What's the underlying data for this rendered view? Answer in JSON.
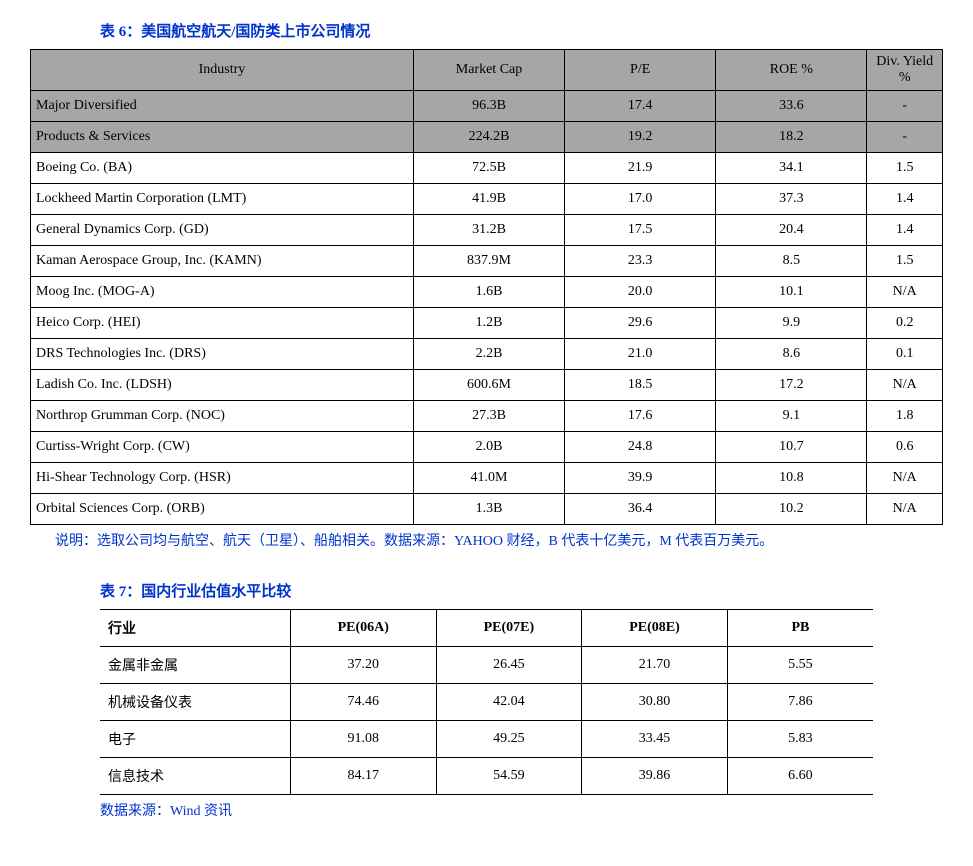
{
  "table6": {
    "title": "表 6：美国航空航天/国防类上市公司情况",
    "headers": [
      "Industry",
      "Market Cap",
      "P/E",
      "ROE %",
      "Div. Yield %"
    ],
    "rows": [
      {
        "cells": [
          "Major Diversified",
          "96.3B",
          "17.4",
          "33.6",
          "-"
        ],
        "gray": true
      },
      {
        "cells": [
          "Products & Services",
          "224.2B",
          "19.2",
          "18.2",
          "-"
        ],
        "gray": true
      },
      {
        "cells": [
          "Boeing Co. (BA)",
          "72.5B",
          "21.9",
          "34.1",
          "1.5"
        ],
        "gray": false
      },
      {
        "cells": [
          "Lockheed Martin Corporation (LMT)",
          "41.9B",
          "17.0",
          "37.3",
          "1.4"
        ],
        "gray": false
      },
      {
        "cells": [
          "General Dynamics Corp. (GD)",
          "31.2B",
          "17.5",
          "20.4",
          "1.4"
        ],
        "gray": false
      },
      {
        "cells": [
          "Kaman Aerospace Group, Inc. (KAMN)",
          "837.9M",
          "23.3",
          "8.5",
          "1.5"
        ],
        "gray": false
      },
      {
        "cells": [
          "Moog Inc. (MOG-A)",
          "1.6B",
          "20.0",
          "10.1",
          "N/A"
        ],
        "gray": false
      },
      {
        "cells": [
          "Heico Corp. (HEI)",
          "1.2B",
          "29.6",
          "9.9",
          "0.2"
        ],
        "gray": false
      },
      {
        "cells": [
          "DRS Technologies Inc. (DRS)",
          "2.2B",
          "21.0",
          "8.6",
          "0.1"
        ],
        "gray": false
      },
      {
        "cells": [
          "Ladish Co. Inc. (LDSH)",
          "600.6M",
          "18.5",
          "17.2",
          "N/A"
        ],
        "gray": false
      },
      {
        "cells": [
          "Northrop Grumman Corp. (NOC)",
          "27.3B",
          "17.6",
          "9.1",
          "1.8"
        ],
        "gray": false
      },
      {
        "cells": [
          "Curtiss-Wright Corp. (CW)",
          "2.0B",
          "24.8",
          "10.7",
          "0.6"
        ],
        "gray": false
      },
      {
        "cells": [
          "Hi-Shear Technology Corp. (HSR)",
          "41.0M",
          "39.9",
          "10.8",
          "N/A"
        ],
        "gray": false
      },
      {
        "cells": [
          "Orbital Sciences Corp. (ORB)",
          "1.3B",
          "36.4",
          "10.2",
          "N/A"
        ],
        "gray": false
      }
    ],
    "note": "说明：选取公司均与航空、航天（卫星）、船舶相关。数据来源：YAHOO 财经，B 代表十亿美元，M 代表百万美元。"
  },
  "table7": {
    "title": "表 7：国内行业估值水平比较",
    "headers": [
      "行业",
      "PE(06A)",
      "PE(07E)",
      "PE(08E)",
      "PB"
    ],
    "rows": [
      [
        "金属非金属",
        "37.20",
        "26.45",
        "21.70",
        "5.55"
      ],
      [
        "机械设备仪表",
        "74.46",
        "42.04",
        "30.80",
        "7.86"
      ],
      [
        "电子",
        "91.08",
        "49.25",
        "33.45",
        "5.83"
      ],
      [
        "信息技术",
        "84.17",
        "54.59",
        "39.86",
        "6.60"
      ]
    ],
    "source": "数据来源：Wind 资讯"
  }
}
